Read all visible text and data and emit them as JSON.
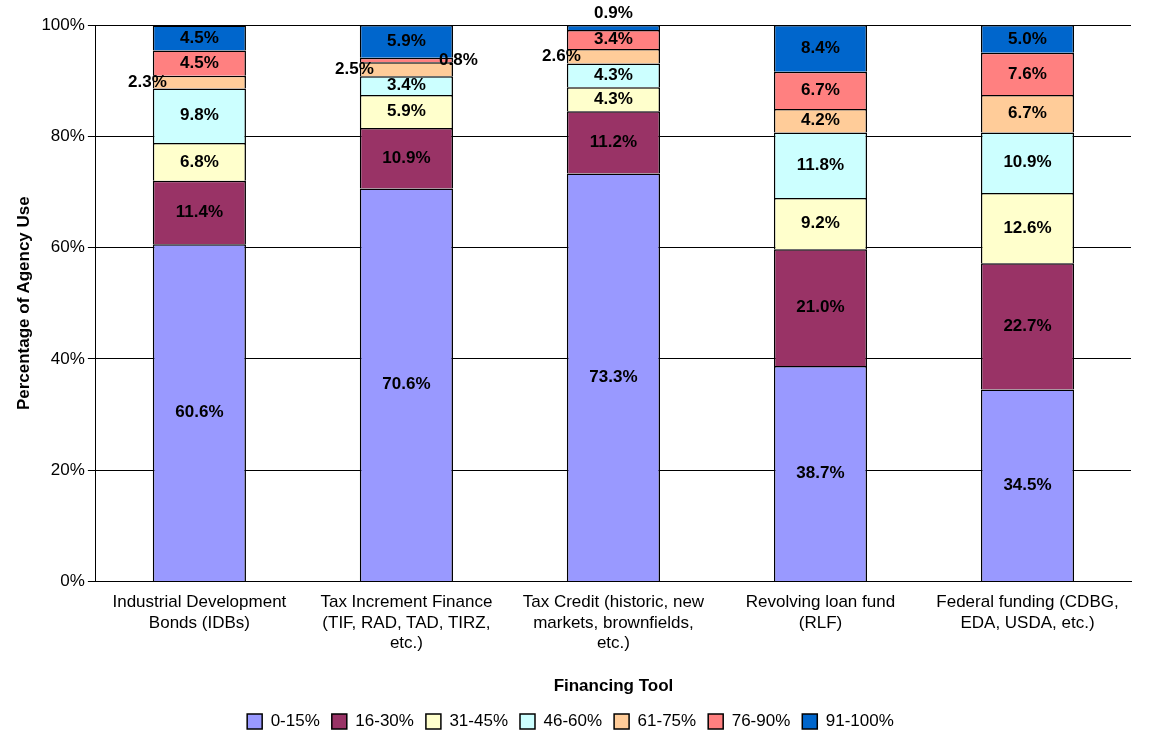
{
  "chart_data": {
    "type": "bar",
    "stacked": true,
    "xlabel": "Financing Tool",
    "ylabel": "Percentage of Agency Use",
    "categories": [
      "Industrial Development Bonds (IDBs)",
      "Tax Increment Finance (TIF, RAD, TAD, TIRZ, etc.)",
      "Tax Credit (historic, new markets, brownfields, etc.)",
      "Revolving loan fund (RLF)",
      "Federal funding (CDBG, EDA, USDA, etc.)"
    ],
    "series": [
      {
        "name": "0-15%",
        "color": "#9999ff",
        "values": [
          60.6,
          70.6,
          73.3,
          38.7,
          34.5
        ],
        "value_labels": [
          "60.6%",
          "70.6%",
          "73.3%",
          "38.7%",
          "34.5%"
        ]
      },
      {
        "name": "16-30%",
        "color": "#993366",
        "values": [
          11.4,
          10.9,
          11.2,
          21.0,
          22.7
        ],
        "value_labels": [
          "11.4%",
          "10.9%",
          "11.2%",
          "21.0%",
          "22.7%"
        ]
      },
      {
        "name": "31-45%",
        "color": "#ffffcc",
        "values": [
          6.8,
          5.9,
          4.3,
          9.2,
          12.6
        ],
        "value_labels": [
          "6.8%",
          "5.9%",
          "4.3%",
          "9.2%",
          "12.6%"
        ]
      },
      {
        "name": "46-60%",
        "color": "#ccffff",
        "values": [
          9.8,
          3.4,
          4.3,
          11.8,
          10.9
        ],
        "value_labels": [
          "9.8%",
          "3.4%",
          "4.3%",
          "11.8%",
          "10.9%"
        ]
      },
      {
        "name": "61-75%",
        "color": "#ffcc99",
        "values": [
          2.3,
          2.5,
          2.6,
          4.2,
          6.7
        ],
        "value_labels": [
          "2.3%",
          "2.5%",
          "2.6%",
          "4.2%",
          "6.7%"
        ]
      },
      {
        "name": "76-90%",
        "color": "#ff8080",
        "values": [
          4.5,
          0.8,
          3.4,
          6.7,
          7.6
        ],
        "value_labels": [
          "4.5%",
          "0.8%",
          "3.4%",
          "6.7%",
          "7.6%"
        ]
      },
      {
        "name": "91-100%",
        "color": "#0066cc",
        "values": [
          4.5,
          5.9,
          0.9,
          8.4,
          5.0
        ],
        "value_labels": [
          "4.5%",
          "5.9%",
          "0.9%",
          "8.4%",
          "5.0%"
        ]
      }
    ],
    "ylim": [
      0,
      100
    ],
    "yticks": [
      {
        "value": 0,
        "label": "0%"
      },
      {
        "value": 20,
        "label": "20%"
      },
      {
        "value": 40,
        "label": "40%"
      },
      {
        "value": 60,
        "label": "60%"
      },
      {
        "value": 80,
        "label": "80%"
      },
      {
        "value": 100,
        "label": "100%"
      }
    ],
    "grid": "y",
    "legend": "bottom"
  }
}
